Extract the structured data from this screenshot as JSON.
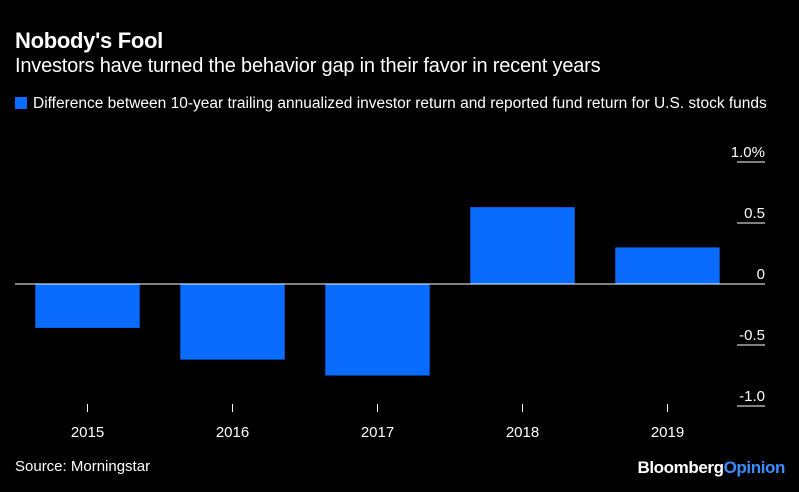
{
  "header": {
    "title": "Nobody's Fool",
    "subtitle": "Investors have turned the behavior gap in their favor in recent years"
  },
  "legend": {
    "label": "Difference between 10-year trailing annualized investor return and reported fund return for U.S. stock funds"
  },
  "footer": {
    "source": "Source: Morningstar",
    "brand_main": "Bloomberg",
    "brand_accent": "Opinion"
  },
  "colors": {
    "background": "#000000",
    "bar": "#0a6bff",
    "text": "#ffffff",
    "axis": "#ffffff",
    "brand_accent": "#3b8cff"
  },
  "chart_data": {
    "type": "bar",
    "categories": [
      "2015",
      "2016",
      "2017",
      "2018",
      "2019"
    ],
    "series": [
      {
        "values": [
          -0.36,
          -0.62,
          -0.75,
          0.63,
          0.3
        ]
      }
    ],
    "ylim": [
      -1.0,
      1.0
    ],
    "yticks": [
      1.0,
      0.5,
      0,
      -0.5,
      -1.0
    ],
    "ytick_labels": [
      "1.0%",
      "0.5",
      "0",
      "-0.5",
      "-1.0"
    ],
    "xlabel": "",
    "ylabel": "",
    "y_axis_position": "right",
    "grid": false,
    "legend_position": "top-left"
  }
}
